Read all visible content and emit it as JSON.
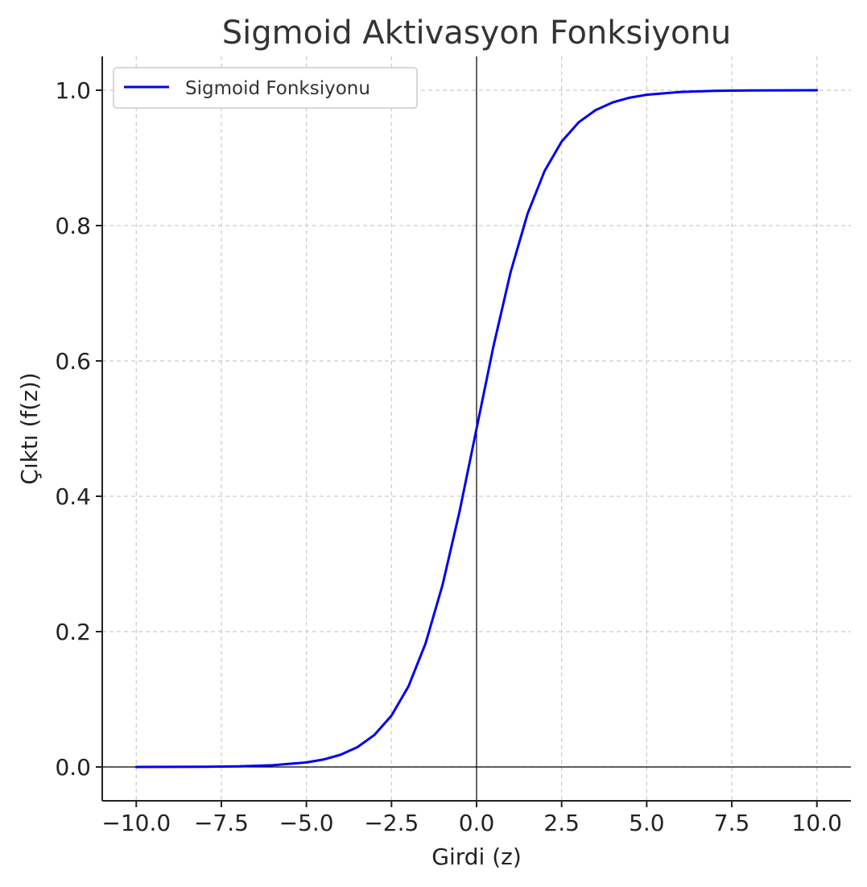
{
  "chart_data": {
    "type": "line",
    "title": "Sigmoid Aktivasyon Fonksiyonu",
    "xlabel": "Girdi (z)",
    "ylabel": "Çıktı (f(z))",
    "xlim": [
      -11,
      11
    ],
    "ylim": [
      -0.05,
      1.05
    ],
    "x_ticks": [
      -10,
      -7.5,
      -5,
      -2.5,
      0,
      2.5,
      5,
      7.5,
      10
    ],
    "y_ticks": [
      0,
      0.2,
      0.4,
      0.6,
      0.8,
      1.0
    ],
    "x_tick_labels": [
      "−10.0",
      "−7.5",
      "−5.0",
      "−2.5",
      "0.0",
      "2.5",
      "5.0",
      "7.5",
      "10.0"
    ],
    "y_tick_labels": [
      "0.0",
      "0.2",
      "0.4",
      "0.6",
      "0.8",
      "1.0"
    ],
    "grid": true,
    "legend_position": "top-left",
    "reference_lines": {
      "x": 0,
      "y": 0
    },
    "series": [
      {
        "name": "Sigmoid Fonksiyonu",
        "color": "#0000ee",
        "x": [
          -10,
          -9,
          -8,
          -7,
          -6,
          -5,
          -4.5,
          -4,
          -3.5,
          -3,
          -2.5,
          -2,
          -1.5,
          -1,
          -0.5,
          0,
          0.5,
          1,
          1.5,
          2,
          2.5,
          3,
          3.5,
          4,
          4.5,
          5,
          6,
          7,
          8,
          9,
          10
        ],
        "y": [
          5e-05,
          0.00012,
          0.00034,
          0.00091,
          0.00247,
          0.00669,
          0.011,
          0.018,
          0.0293,
          0.0474,
          0.0759,
          0.1192,
          0.1824,
          0.2689,
          0.3775,
          0.5,
          0.6225,
          0.7311,
          0.8176,
          0.8808,
          0.9241,
          0.9526,
          0.9707,
          0.982,
          0.989,
          0.99331,
          0.99753,
          0.99909,
          0.99966,
          0.99988,
          0.99995
        ]
      }
    ]
  },
  "colors": {
    "series": "#0000ee",
    "grid": "#cccccc",
    "axis": "#222222",
    "reference": "#000000"
  }
}
